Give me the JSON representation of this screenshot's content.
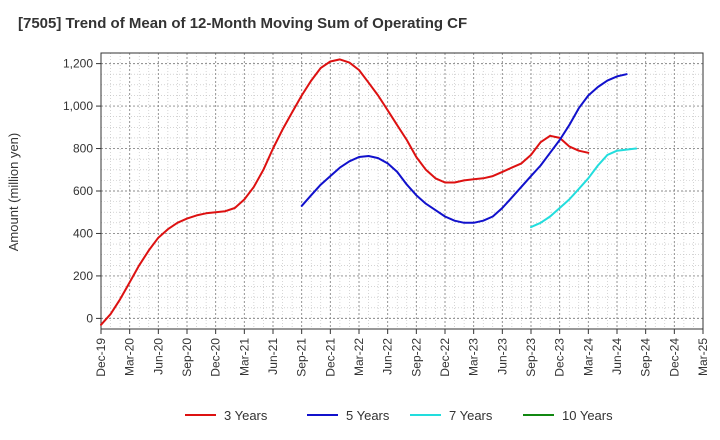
{
  "chart_data": {
    "type": "line",
    "title": "[7505]  Trend of Mean of 12-Month Moving Sum of Operating CF",
    "xlabel": "",
    "ylabel": "Amount (million yen)",
    "ylim": [
      -50,
      1250
    ],
    "yticks": [
      0,
      200,
      400,
      600,
      800,
      1000,
      1200
    ],
    "ytick_labels": [
      "0",
      "200",
      "400",
      "600",
      "800",
      "1,000",
      "1,200"
    ],
    "x_tick_labels": [
      "Dec-19",
      "Mar-20",
      "Jun-20",
      "Sep-20",
      "Dec-20",
      "Mar-21",
      "Jun-21",
      "Sep-21",
      "Dec-21",
      "Mar-22",
      "Jun-22",
      "Sep-22",
      "Dec-22",
      "Mar-23",
      "Jun-23",
      "Sep-23",
      "Dec-23",
      "Mar-24",
      "Jun-24",
      "Sep-24",
      "Dec-24",
      "Mar-25"
    ],
    "grid": true,
    "legend_position": "bottom",
    "series": [
      {
        "name": "3 Years",
        "color": "#dd1111",
        "start_index": 0,
        "values": [
          -30,
          20,
          90,
          170,
          250,
          320,
          380,
          420,
          450,
          470,
          485,
          495,
          500,
          505,
          520,
          560,
          620,
          700,
          800,
          890,
          970,
          1050,
          1120,
          1180,
          1210,
          1220,
          1205,
          1170,
          1110,
          1050,
          980,
          910,
          840,
          760,
          700,
          660,
          640,
          640,
          650,
          655,
          660,
          670,
          690,
          710,
          730,
          770,
          830,
          860,
          850,
          810,
          790,
          780
        ]
      },
      {
        "name": "5 Years",
        "color": "#1111cc",
        "start_index": 21,
        "values": [
          530,
          580,
          630,
          670,
          710,
          740,
          760,
          765,
          755,
          730,
          690,
          630,
          580,
          540,
          510,
          480,
          460,
          450,
          450,
          460,
          480,
          520,
          570,
          620,
          670,
          720,
          780,
          840,
          910,
          990,
          1050,
          1090,
          1120,
          1140,
          1150
        ]
      },
      {
        "name": "7 Years",
        "color": "#22dddd",
        "start_index": 45,
        "values": [
          430,
          450,
          480,
          520,
          560,
          610,
          660,
          720,
          770,
          790,
          795,
          800
        ]
      },
      {
        "name": "10 Years",
        "color": "#118811",
        "start_index": 0,
        "values": []
      }
    ]
  }
}
